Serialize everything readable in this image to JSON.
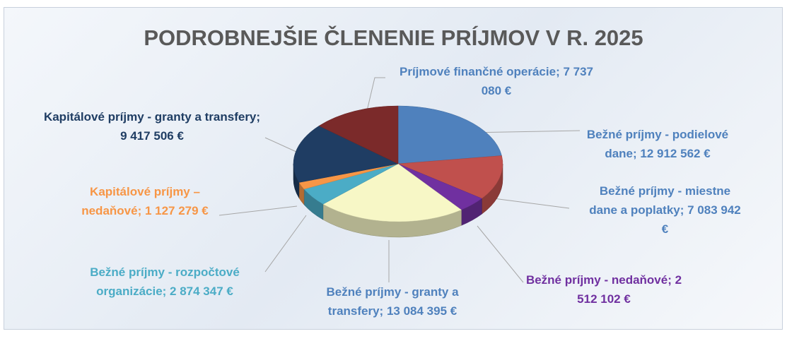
{
  "chart_data": {
    "type": "pie",
    "title": "PODROBNEJŠIE ČLENENIE PRÍJMOV V R. 2025",
    "values": [
      12912562,
      7083942,
      2512102,
      13084395,
      2874347,
      1127279,
      9417506,
      7737080
    ],
    "value_labels": [
      "Bežné príjmy - podielové dane; 12 912 562 €",
      "Bežné príjmy - miestne dane a poplatky; 7 083 942 €",
      "Bežné príjmy - nedaňové; 2 512 102 €",
      "Bežné príjmy - granty a transfery; 13 084 395 €",
      "Bežné príjmy - rozpočtové organizácie; 2 874 347 €",
      "Kapitálové príjmy – nedaňové; 1 127 279 €",
      "Kapitálové príjmy - granty a transfery; 9 417 506 €",
      "Príjmové finančné operácie; 7 737 080 €"
    ],
    "colors": [
      "#4f81bd",
      "#c0504d",
      "#7030a0",
      "#f7f7c6",
      "#4bacc6",
      "#f79646",
      "#1f3d63",
      "#7b2a2a"
    ]
  }
}
